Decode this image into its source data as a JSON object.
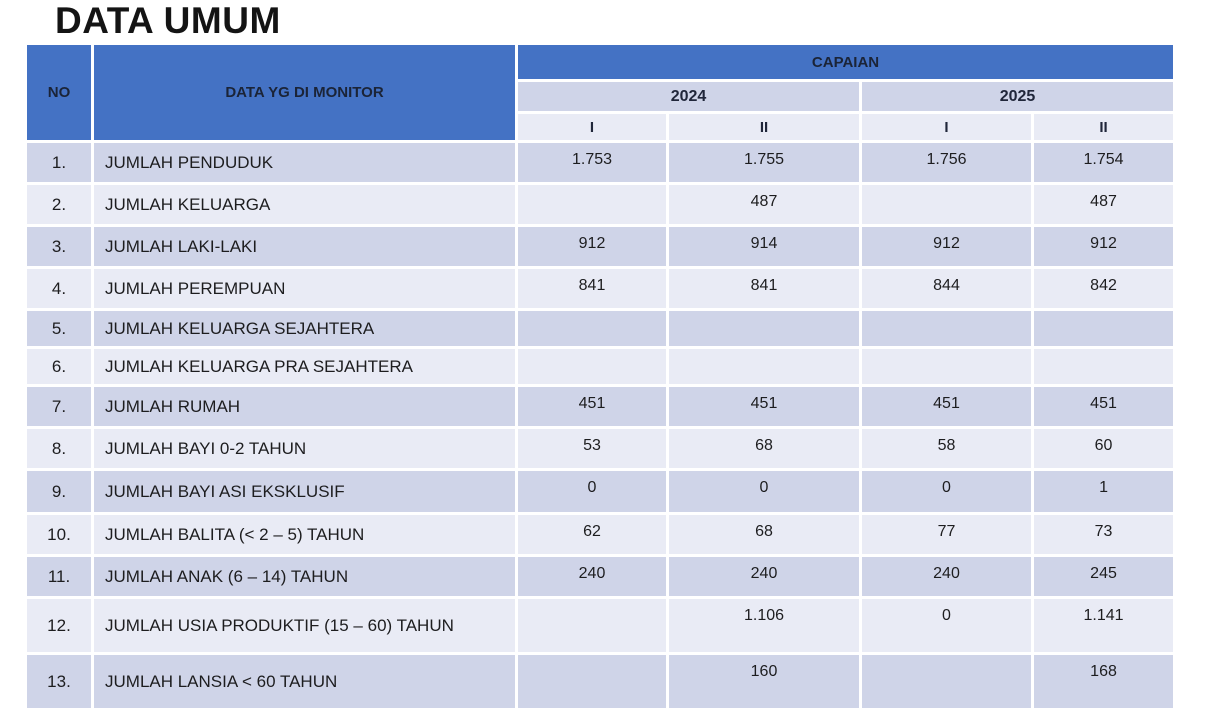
{
  "title": "DATA UMUM",
  "colors": {
    "header_blue": "#4472C4",
    "header_text": "#1B2437",
    "row_odd": "#CFD4E8",
    "row_even": "#E9EBF5"
  },
  "table": {
    "headers": {
      "no": "NO",
      "monitor": "DATA YG DI MONITOR",
      "capaian": "CAPAIAN",
      "years": [
        "2024",
        "2025"
      ],
      "semesters": [
        "I",
        "II",
        "I",
        "II"
      ]
    },
    "rows": [
      {
        "no": "1.",
        "label": "JUMLAH PENDUDUK",
        "values": [
          "1.753",
          "1.755",
          "1.756",
          "1.754"
        ]
      },
      {
        "no": "2.",
        "label": "JUMLAH KELUARGA",
        "values": [
          "",
          "487",
          "",
          "487"
        ]
      },
      {
        "no": "3.",
        "label": "JUMLAH LAKI-LAKI",
        "values": [
          "912",
          "914",
          "912",
          "912"
        ]
      },
      {
        "no": "4.",
        "label": "JUMLAH PEREMPUAN",
        "values": [
          "841",
          "841",
          "844",
          "842"
        ]
      },
      {
        "no": "5.",
        "label": "JUMLAH KELUARGA SEJAHTERA",
        "values": [
          "",
          "",
          "",
          ""
        ]
      },
      {
        "no": "6.",
        "label": "JUMLAH KELUARGA PRA SEJAHTERA",
        "values": [
          "",
          "",
          "",
          ""
        ]
      },
      {
        "no": "7.",
        "label": "JUMLAH RUMAH",
        "values": [
          "451",
          "451",
          "451",
          "451"
        ]
      },
      {
        "no": "8.",
        "label": "JUMLAH BAYI 0-2 TAHUN",
        "values": [
          "53",
          "68",
          "58",
          "60"
        ]
      },
      {
        "no": "9.",
        "label": "JUMLAH BAYI ASI EKSKLUSIF",
        "values": [
          "0",
          "0",
          "0",
          "1"
        ]
      },
      {
        "no": "10.",
        "label": "JUMLAH BALITA (< 2 – 5) TAHUN",
        "values": [
          "62",
          "68",
          "77",
          "73"
        ]
      },
      {
        "no": "11.",
        "label": "JUMLAH ANAK (6 – 14) TAHUN",
        "values": [
          "240",
          "240",
          "240",
          "245"
        ]
      },
      {
        "no": "12.",
        "label": "JUMLAH USIA PRODUKTIF (15 – 60) TAHUN",
        "values": [
          "",
          "1.106",
          "0",
          "1.141"
        ]
      },
      {
        "no": "13.",
        "label": "JUMLAH LANSIA < 60 TAHUN",
        "values": [
          "",
          "160",
          "",
          "168"
        ]
      }
    ]
  }
}
